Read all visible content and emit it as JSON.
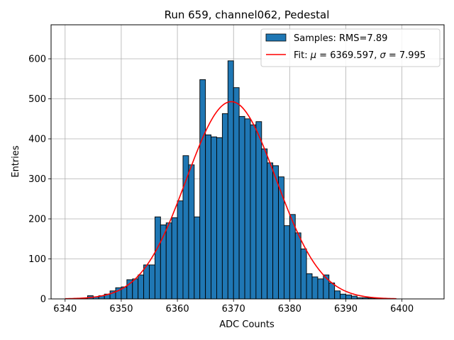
{
  "chart_data": {
    "type": "bar",
    "title": "Run 659, channel062, Pedestal",
    "xlabel": "ADC Counts",
    "ylabel": "Entries",
    "xlim": [
      6337.5,
      6407.5
    ],
    "ylim": [
      0,
      685
    ],
    "xticks": [
      6340,
      6350,
      6360,
      6370,
      6380,
      6390,
      6400
    ],
    "yticks": [
      0,
      100,
      200,
      300,
      400,
      500,
      600
    ],
    "grid": true,
    "legend_position": "top-right",
    "bar_color": "#1f77b4",
    "fit_color": "#ff0000",
    "histogram": {
      "name": "Samples: RMS=7.89",
      "bin_width": 1,
      "bin_start": [
        6343,
        6344,
        6345,
        6346,
        6347,
        6348,
        6349,
        6350,
        6351,
        6352,
        6353,
        6354,
        6355,
        6356,
        6357,
        6358,
        6359,
        6360,
        6361,
        6362,
        6363,
        6364,
        6365,
        6366,
        6367,
        6368,
        6369,
        6370,
        6371,
        6372,
        6373,
        6374,
        6375,
        6376,
        6377,
        6378,
        6379,
        6380,
        6381,
        6382,
        6383,
        6384,
        6385,
        6386,
        6387,
        6388,
        6389,
        6390,
        6391,
        6392,
        6393,
        6394,
        6395,
        6396
      ],
      "counts": [
        2,
        8,
        5,
        8,
        12,
        20,
        28,
        30,
        48,
        50,
        60,
        85,
        85,
        205,
        185,
        190,
        203,
        245,
        358,
        335,
        205,
        548,
        410,
        405,
        403,
        463,
        595,
        528,
        456,
        450,
        435,
        443,
        375,
        340,
        333,
        305,
        183,
        211,
        165,
        125,
        63,
        55,
        50,
        60,
        40,
        20,
        12,
        10,
        7,
        3,
        3,
        2,
        1,
        1
      ]
    },
    "fit": {
      "name": "Fit: μ = 6369.597, σ = 7.995",
      "mu": 6369.597,
      "sigma": 7.995,
      "amplitude": 493,
      "x_range": [
        6340,
        6399
      ]
    },
    "legend": [
      {
        "label_prefix": "Samples: RMS=7.89",
        "kind": "bar"
      },
      {
        "label_prefix": "Fit: ",
        "mu_symbol": "μ",
        "mu_text": " = 6369.597, ",
        "sigma_symbol": "σ",
        "sigma_text": " = 7.995",
        "kind": "line"
      }
    ]
  }
}
